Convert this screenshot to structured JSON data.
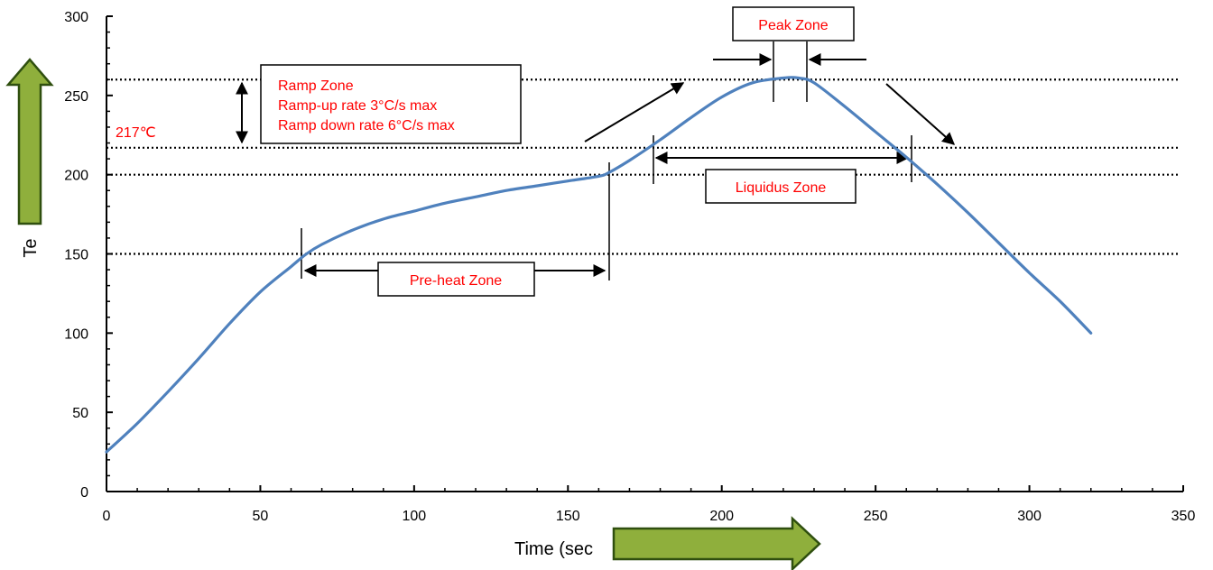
{
  "chart_data": {
    "type": "line",
    "title": "",
    "xlabel": "Time (sec",
    "ylabel": "Te",
    "xlim": [
      0,
      350
    ],
    "ylim": [
      0,
      300
    ],
    "x_ticks": [
      0,
      50,
      100,
      150,
      200,
      250,
      300,
      350
    ],
    "y_ticks": [
      0,
      50,
      100,
      150,
      200,
      250,
      300
    ],
    "grid": false,
    "legend": "none",
    "series": [
      {
        "color": "#4f81bd",
        "x": [
          0,
          10,
          20,
          30,
          40,
          50,
          60,
          65,
          70,
          80,
          90,
          100,
          110,
          120,
          130,
          140,
          150,
          160,
          163,
          170,
          180,
          190,
          200,
          210,
          220,
          225,
          230,
          240,
          250,
          260,
          270,
          280,
          290,
          300,
          310,
          320
        ],
        "y": [
          25,
          43,
          63,
          84,
          106,
          126,
          142,
          150,
          156,
          165,
          172,
          177,
          182,
          186,
          190,
          193,
          196,
          199,
          201,
          209,
          222,
          236,
          249,
          258,
          261,
          261,
          258,
          243,
          227,
          211,
          194,
          176,
          157,
          138,
          120,
          100
        ]
      }
    ],
    "reference_lines": [
      {
        "y": 260,
        "style": "dotted"
      },
      {
        "y": 217,
        "style": "dotted"
      },
      {
        "y": 200,
        "style": "dotted"
      },
      {
        "y": 150,
        "style": "dotted"
      }
    ],
    "annotations": {
      "ramp_zone": {
        "lines": [
          "Ramp Zone",
          "Ramp-up rate 3°C/s max",
          "Ramp down rate 6°C/s max"
        ]
      },
      "temp_label": "217℃",
      "peak_zone": "Peak Zone",
      "liquidus_zone": "Liquidus Zone",
      "preheat_zone": "Pre-heat Zone"
    },
    "colors": {
      "annotation_text": "#ff0000",
      "decor_arrow_fill": "#8faf3c",
      "decor_arrow_stroke": "#2f4f0f"
    }
  }
}
